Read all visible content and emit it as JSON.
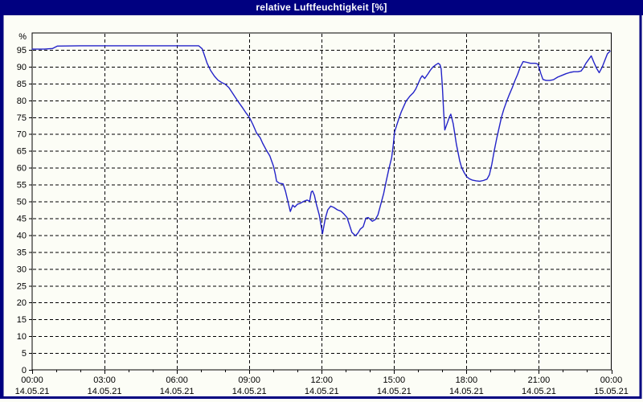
{
  "window": {
    "title": "relative Luftfeuchtigkeit [%]",
    "title_bar_color": "#000080",
    "title_text_color": "#ffffff",
    "frame_color": "#000080",
    "content_background": "#fcfdf6"
  },
  "chart_data": {
    "type": "line",
    "title": "relative Luftfeuchtigkeit [%]",
    "xlabel": "",
    "ylabel": "%",
    "ylim": [
      0,
      100
    ],
    "xlim_hours": [
      0,
      24
    ],
    "grid": "dashed",
    "legend": "none",
    "line_color": "#2323c8",
    "grid_color": "#000000",
    "axis_color": "#000000",
    "y_ticks": [
      0,
      5,
      10,
      15,
      20,
      25,
      30,
      35,
      40,
      45,
      50,
      55,
      60,
      65,
      70,
      75,
      80,
      85,
      90,
      95
    ],
    "y_gridline_values": [
      5,
      10,
      15,
      20,
      25,
      30,
      35,
      40,
      45,
      50,
      55,
      60,
      65,
      70,
      75,
      80,
      85,
      90,
      95
    ],
    "x_gridline_hours": [
      3,
      6,
      9,
      12,
      15,
      18,
      21
    ],
    "x_minor_tick_every_hours": 1,
    "x_ticks": [
      {
        "hour": 0,
        "time": "00:00",
        "date": "14.05.21"
      },
      {
        "hour": 3,
        "time": "03:00",
        "date": "14.05.21"
      },
      {
        "hour": 6,
        "time": "06:00",
        "date": "14.05.21"
      },
      {
        "hour": 9,
        "time": "09:00",
        "date": "14.05.21"
      },
      {
        "hour": 12,
        "time": "12:00",
        "date": "14.05.21"
      },
      {
        "hour": 15,
        "time": "15:00",
        "date": "14.05.21"
      },
      {
        "hour": 18,
        "time": "18:00",
        "date": "14.05.21"
      },
      {
        "hour": 21,
        "time": "21:00",
        "date": "14.05.21"
      },
      {
        "hour": 24,
        "time": "00:00",
        "date": "15.05.21"
      }
    ],
    "series": [
      {
        "name": "relative Luftfeuchtigkeit [%]",
        "points": [
          [
            0,
            95.2
          ],
          [
            0.5,
            95.2
          ],
          [
            0.85,
            95.4
          ],
          [
            1.05,
            96.1
          ],
          [
            2,
            96.2
          ],
          [
            3,
            96.2
          ],
          [
            4,
            96.2
          ],
          [
            5,
            96.2
          ],
          [
            6,
            96.2
          ],
          [
            6.9,
            96.2
          ],
          [
            7.05,
            95.3
          ],
          [
            7.15,
            93.2
          ],
          [
            7.25,
            91
          ],
          [
            7.4,
            88.8
          ],
          [
            7.55,
            87.2
          ],
          [
            7.7,
            86
          ],
          [
            7.85,
            85.3
          ],
          [
            8,
            84.8
          ],
          [
            8.15,
            83.8
          ],
          [
            8.3,
            82.2
          ],
          [
            8.5,
            80
          ],
          [
            8.7,
            78
          ],
          [
            8.85,
            76.4
          ],
          [
            9,
            75
          ],
          [
            9.15,
            72.8
          ],
          [
            9.3,
            70.3
          ],
          [
            9.45,
            68.9
          ],
          [
            9.55,
            67.3
          ],
          [
            9.7,
            65.3
          ],
          [
            9.85,
            63.5
          ],
          [
            10,
            60.5
          ],
          [
            10.08,
            58
          ],
          [
            10.13,
            56
          ],
          [
            10.25,
            55.4
          ],
          [
            10.4,
            55.2
          ],
          [
            10.5,
            53
          ],
          [
            10.6,
            50
          ],
          [
            10.7,
            47
          ],
          [
            10.8,
            48.9
          ],
          [
            10.88,
            48.3
          ],
          [
            11,
            49.2
          ],
          [
            11.1,
            49.4
          ],
          [
            11.25,
            50
          ],
          [
            11.4,
            50.4
          ],
          [
            11.5,
            50
          ],
          [
            11.57,
            52.8
          ],
          [
            11.62,
            53.1
          ],
          [
            11.7,
            51.8
          ],
          [
            11.78,
            49.2
          ],
          [
            11.9,
            46
          ],
          [
            12.03,
            40.4
          ],
          [
            12.15,
            45
          ],
          [
            12.25,
            47.5
          ],
          [
            12.37,
            48.6
          ],
          [
            12.5,
            48.2
          ],
          [
            12.65,
            47.5
          ],
          [
            12.8,
            47.1
          ],
          [
            12.93,
            46.2
          ],
          [
            13.05,
            45.2
          ],
          [
            13.15,
            43
          ],
          [
            13.25,
            40.8
          ],
          [
            13.4,
            39.8
          ],
          [
            13.5,
            40.6
          ],
          [
            13.6,
            41.8
          ],
          [
            13.72,
            42.5
          ],
          [
            13.83,
            45
          ],
          [
            13.93,
            45.2
          ],
          [
            14.1,
            44.1
          ],
          [
            14.22,
            44.6
          ],
          [
            14.33,
            46
          ],
          [
            14.45,
            49.2
          ],
          [
            14.57,
            52.4
          ],
          [
            14.67,
            55.9
          ],
          [
            14.78,
            59.5
          ],
          [
            14.9,
            63
          ],
          [
            14.97,
            67
          ],
          [
            15.02,
            70.6
          ],
          [
            15.1,
            72.4
          ],
          [
            15.2,
            74.6
          ],
          [
            15.3,
            76.6
          ],
          [
            15.4,
            78.2
          ],
          [
            15.5,
            79.8
          ],
          [
            15.65,
            81.2
          ],
          [
            15.8,
            82.3
          ],
          [
            15.9,
            83.4
          ],
          [
            16,
            85
          ],
          [
            16.1,
            86.6
          ],
          [
            16.17,
            87.3
          ],
          [
            16.27,
            86.5
          ],
          [
            16.4,
            87.8
          ],
          [
            16.5,
            88.9
          ],
          [
            16.6,
            89.8
          ],
          [
            16.72,
            90.5
          ],
          [
            16.83,
            91
          ],
          [
            16.9,
            90.6
          ],
          [
            16.95,
            89.3
          ],
          [
            17,
            84
          ],
          [
            17.05,
            77
          ],
          [
            17.1,
            71.2
          ],
          [
            17.2,
            73.2
          ],
          [
            17.3,
            75.2
          ],
          [
            17.35,
            75.9
          ],
          [
            17.45,
            73
          ],
          [
            17.52,
            69.8
          ],
          [
            17.58,
            67
          ],
          [
            17.65,
            64.5
          ],
          [
            17.72,
            62
          ],
          [
            17.8,
            60
          ],
          [
            17.9,
            58.6
          ],
          [
            18,
            57.4
          ],
          [
            18.12,
            56.7
          ],
          [
            18.25,
            56.3
          ],
          [
            18.4,
            56.1
          ],
          [
            18.55,
            56
          ],
          [
            18.7,
            56.2
          ],
          [
            18.85,
            56.6
          ],
          [
            18.95,
            57.9
          ],
          [
            19.05,
            61
          ],
          [
            19.15,
            65
          ],
          [
            19.25,
            68.6
          ],
          [
            19.35,
            71.8
          ],
          [
            19.45,
            75
          ],
          [
            19.55,
            77.4
          ],
          [
            19.67,
            79.8
          ],
          [
            19.78,
            81.8
          ],
          [
            19.9,
            83.8
          ],
          [
            20,
            85.7
          ],
          [
            20.12,
            87.7
          ],
          [
            20.22,
            89.7
          ],
          [
            20.35,
            91.5
          ],
          [
            20.5,
            91.3
          ],
          [
            20.65,
            91
          ],
          [
            20.85,
            91
          ],
          [
            20.95,
            90.8
          ],
          [
            21.02,
            89.5
          ],
          [
            21.08,
            88
          ],
          [
            21.17,
            86.2
          ],
          [
            21.3,
            85.9
          ],
          [
            21.45,
            85.9
          ],
          [
            21.6,
            86.1
          ],
          [
            21.78,
            86.9
          ],
          [
            21.95,
            87.4
          ],
          [
            22.12,
            87.9
          ],
          [
            22.3,
            88.3
          ],
          [
            22.45,
            88.5
          ],
          [
            22.62,
            88.5
          ],
          [
            22.75,
            88.7
          ],
          [
            22.85,
            89.7
          ],
          [
            22.95,
            91
          ],
          [
            23.07,
            92.2
          ],
          [
            23.17,
            93.2
          ],
          [
            23.28,
            91.3
          ],
          [
            23.4,
            89.4
          ],
          [
            23.5,
            88.2
          ],
          [
            23.62,
            89.8
          ],
          [
            23.73,
            91.8
          ],
          [
            23.84,
            93.8
          ],
          [
            23.95,
            94.6
          ]
        ]
      }
    ]
  }
}
